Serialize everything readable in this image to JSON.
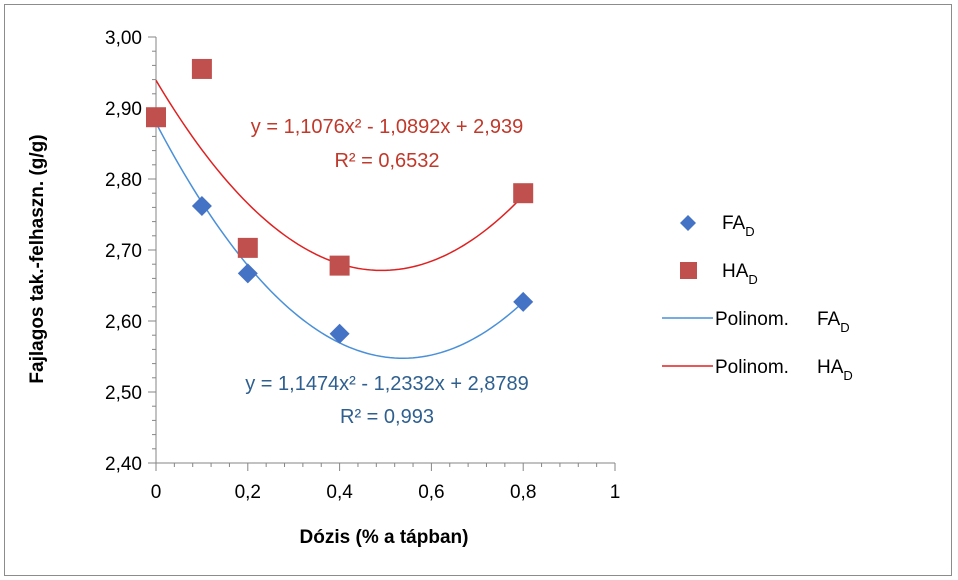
{
  "chart_data": {
    "type": "scatter",
    "xlabel": "Dózis (% a tápban)",
    "ylabel": "Fajlagos tak.-felhaszn. (g/g)",
    "xlim": [
      0,
      1
    ],
    "ylim": [
      2.4,
      3.0
    ],
    "x_ticks": [
      "0",
      "0,2",
      "0,4",
      "0,6",
      "0,8",
      "1"
    ],
    "y_ticks": [
      "2,40",
      "2,50",
      "2,60",
      "2,70",
      "2,80",
      "2,90",
      "3,00"
    ],
    "grid": false,
    "legend_position": "right",
    "series": [
      {
        "name": "FA",
        "subscript": "D",
        "marker": "diamond",
        "color": "#4472c4",
        "x": [
          0,
          0.1,
          0.2,
          0.4,
          0.8
        ],
        "y": [
          2.887,
          2.762,
          2.667,
          2.582,
          2.627
        ]
      },
      {
        "name": "HA",
        "subscript": "D",
        "marker": "square",
        "color": "#c0504d",
        "x": [
          0,
          0.1,
          0.2,
          0.4,
          0.8
        ],
        "y": [
          2.887,
          2.955,
          2.703,
          2.678,
          2.78
        ]
      }
    ],
    "trendlines": [
      {
        "name": "Polinom.",
        "of": "FA",
        "subscript": "D",
        "color": "#4a90d9",
        "coefficients": [
          1.1474,
          -1.2332,
          2.8789
        ],
        "equation": "y = 1,1474x² - 1,2332x + 2,8789",
        "r2": "R² = 0,993",
        "label_color": "#2e5f8f"
      },
      {
        "name": "Polinom.",
        "of": "HA",
        "subscript": "D",
        "color": "#e02020",
        "coefficients": [
          1.1076,
          -1.0892,
          2.939
        ],
        "equation": "y = 1,1076x² - 1,0892x + 2,939",
        "r2": "R² = 0,6532",
        "label_color": "#c0392b"
      }
    ]
  }
}
